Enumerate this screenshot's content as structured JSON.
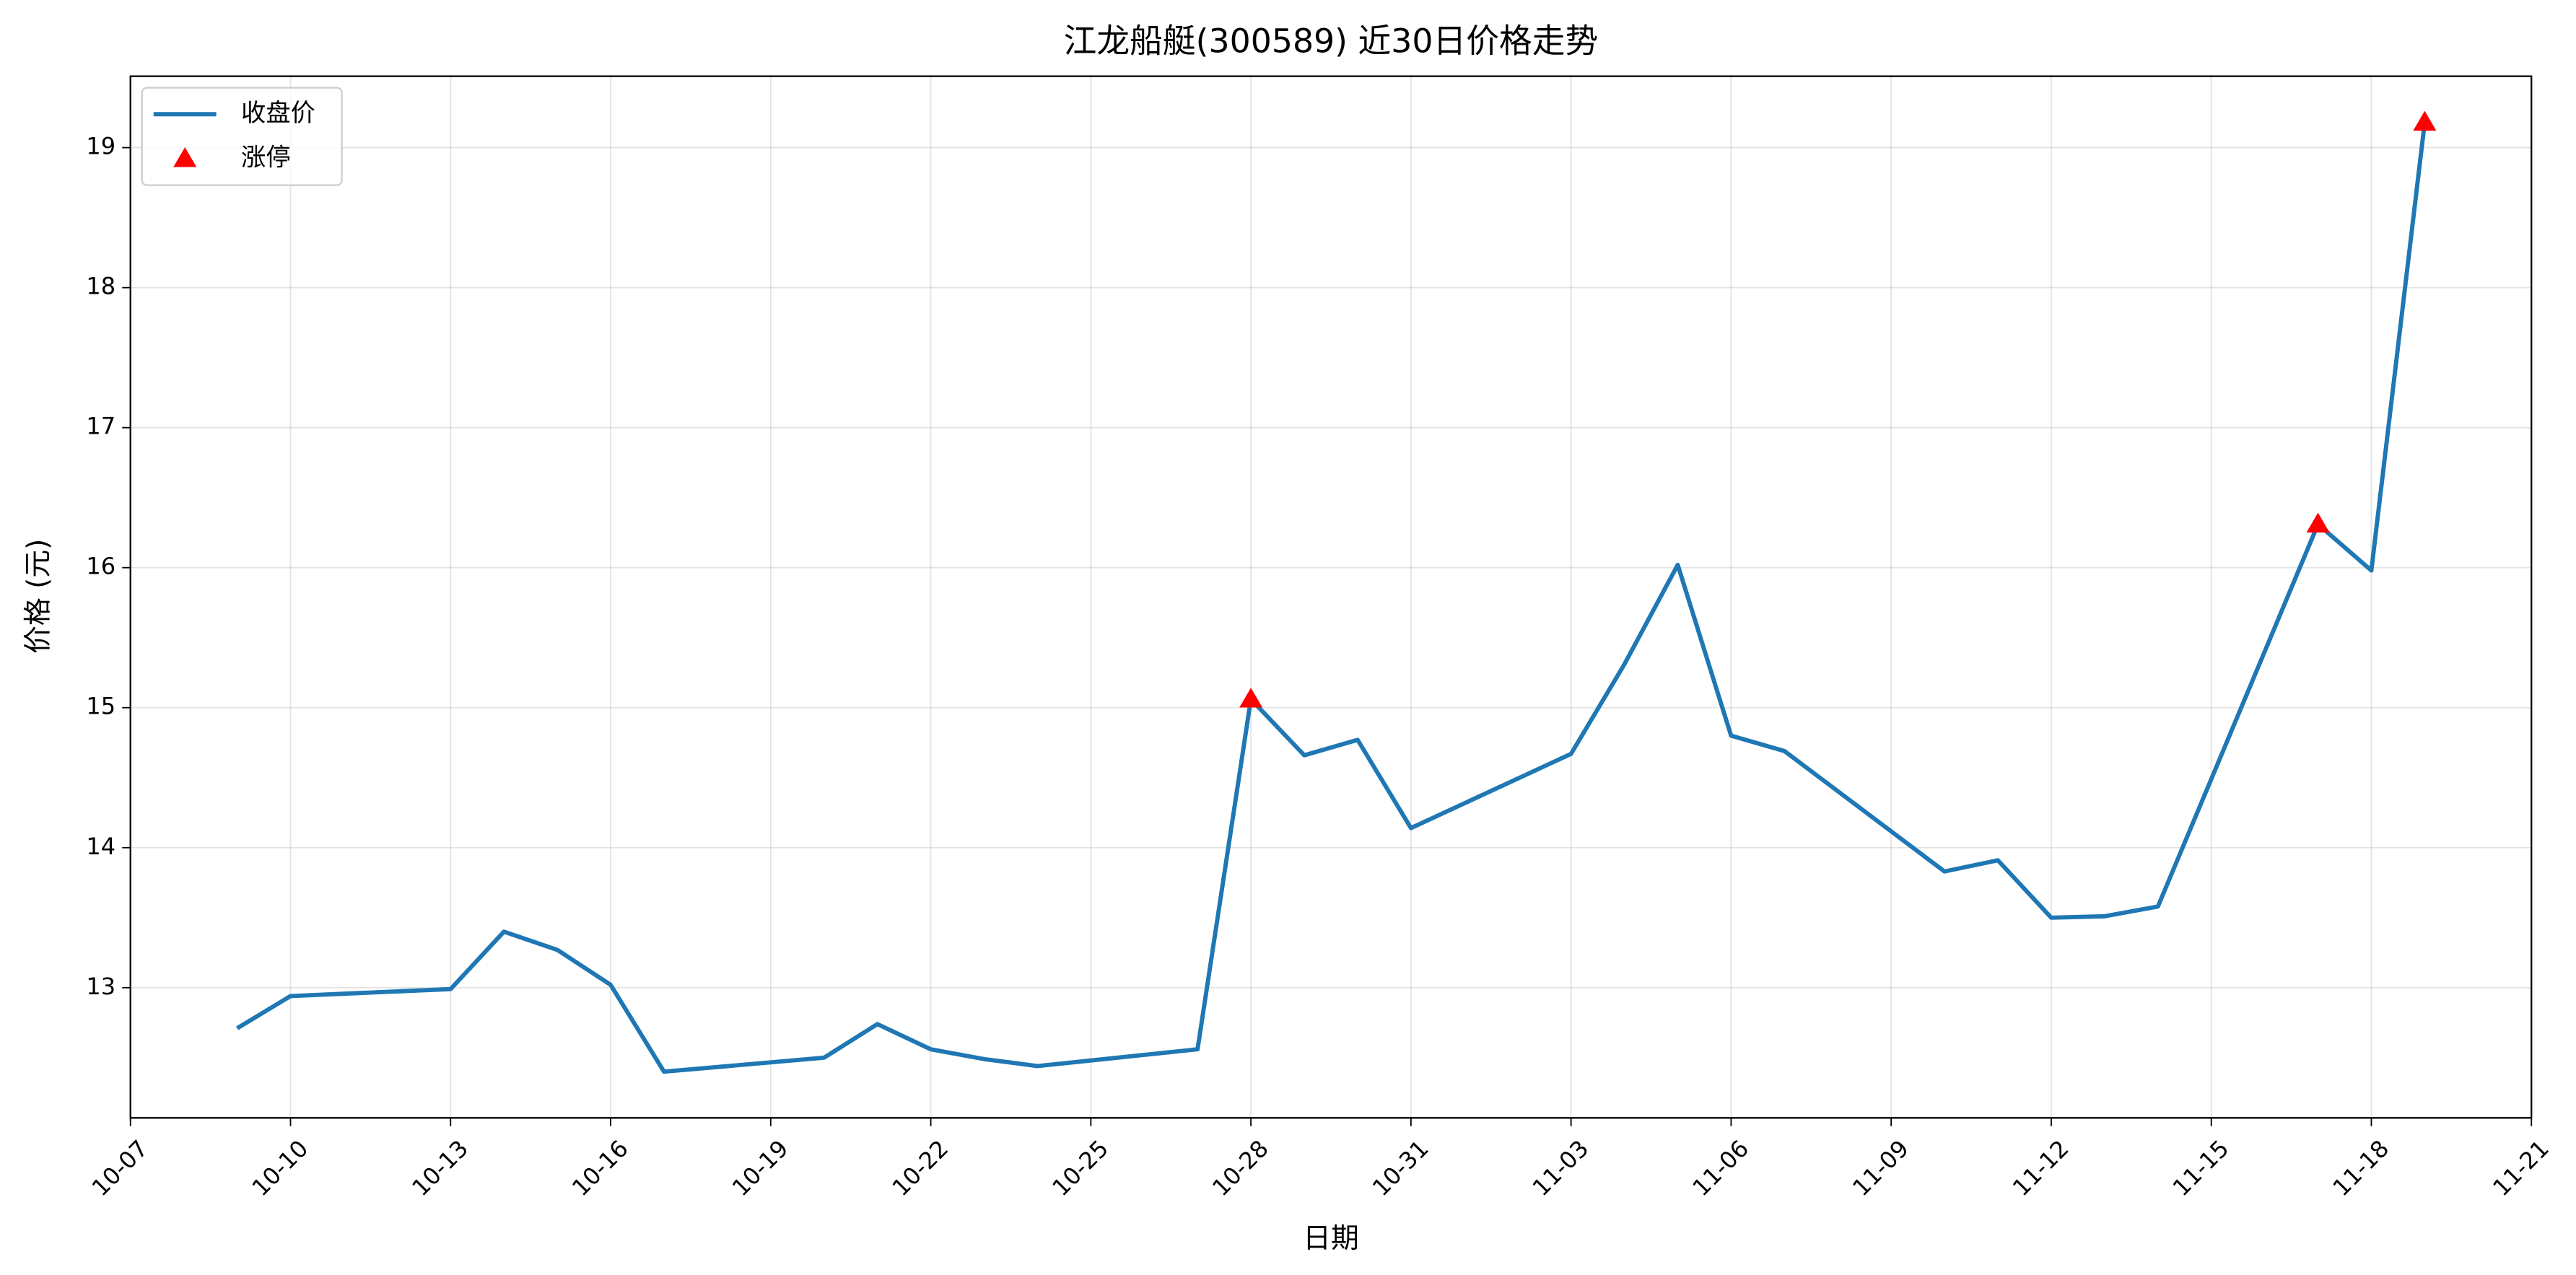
{
  "chart_data": {
    "type": "line",
    "title": "江龙船艇(300589) 近30日价格走势",
    "xlabel": "日期",
    "ylabel": "价格 (元)",
    "x": [
      "10-09",
      "10-10",
      "10-13",
      "10-14",
      "10-15",
      "10-16",
      "10-17",
      "10-20",
      "10-21",
      "10-22",
      "10-23",
      "10-24",
      "10-27",
      "10-28",
      "10-29",
      "10-30",
      "10-31",
      "11-03",
      "11-04",
      "11-05",
      "11-06",
      "11-07",
      "11-10",
      "11-11",
      "11-12",
      "11-13",
      "11-14",
      "11-17",
      "11-18",
      "11-19"
    ],
    "series": [
      {
        "name": "收盘价",
        "color": "#1f77b4",
        "values": [
          12.71,
          12.94,
          12.99,
          13.4,
          13.27,
          13.02,
          12.4,
          12.5,
          12.74,
          12.56,
          12.49,
          12.44,
          12.56,
          15.06,
          14.66,
          14.77,
          14.14,
          14.67,
          15.31,
          16.02,
          14.8,
          14.69,
          13.83,
          13.91,
          13.5,
          13.51,
          13.58,
          16.31,
          15.98,
          19.18
        ]
      },
      {
        "name": "涨停",
        "color": "#ff0000",
        "marker": "triangle",
        "x": [
          "10-28",
          "11-17",
          "11-19"
        ],
        "values": [
          15.06,
          16.31,
          19.18
        ]
      }
    ],
    "xlim": [
      "10-07",
      "11-21"
    ],
    "xticks": [
      "10-07",
      "10-10",
      "10-13",
      "10-16",
      "10-19",
      "10-22",
      "10-25",
      "10-28",
      "10-31",
      "11-03",
      "11-06",
      "11-09",
      "11-12",
      "11-15",
      "11-18",
      "11-21"
    ],
    "ylim": [
      12.07,
      19.51
    ],
    "yticks": [
      13,
      14,
      15,
      16,
      17,
      18,
      19
    ],
    "grid": true,
    "legend": "upper left"
  }
}
